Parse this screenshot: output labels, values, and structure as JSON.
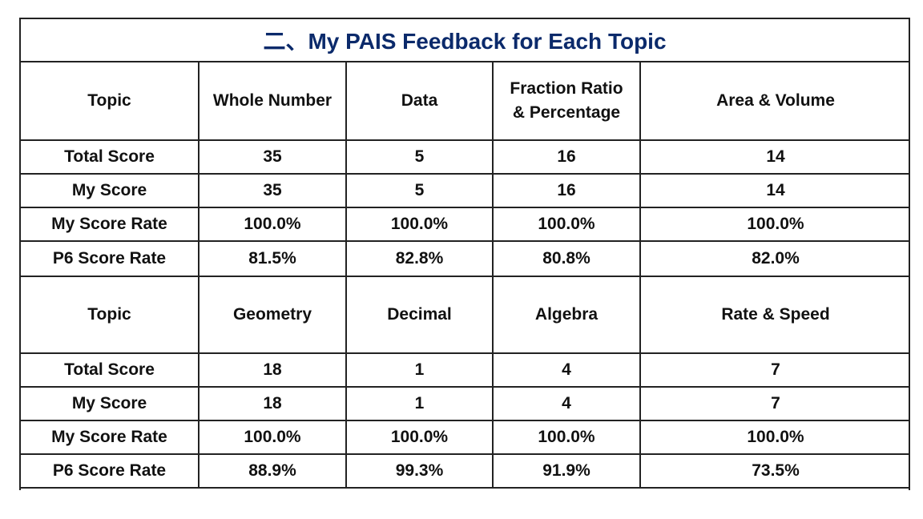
{
  "title": "二、My PAIS Feedback for Each Topic",
  "colors": {
    "navy": "#0b2a6b",
    "red": "#ff1a1a",
    "blue": "#2456cc"
  },
  "section1": {
    "topic_label": "Topic",
    "topics": [
      "Whole Number",
      "Data",
      "Fraction Ratio\n& Percentage",
      "Area & Volume"
    ],
    "rows": {
      "total_score": {
        "label": "Total Score",
        "values": [
          "35",
          "5",
          "16",
          "14"
        ]
      },
      "my_score": {
        "label": "My Score",
        "values": [
          "35",
          "5",
          "16",
          "14"
        ]
      },
      "my_score_rate": {
        "label": "My Score Rate",
        "values": [
          "100.0%",
          "100.0%",
          "100.0%",
          "100.0%"
        ]
      },
      "p6_score_rate": {
        "label": "P6 Score Rate",
        "values": [
          "81.5%",
          "82.8%",
          "80.8%",
          "82.0%"
        ]
      }
    }
  },
  "section2": {
    "topic_label": "Topic",
    "topics": [
      "Geometry",
      "Decimal",
      "Algebra",
      "Rate & Speed"
    ],
    "rows": {
      "total_score": {
        "label": "Total Score",
        "values": [
          "18",
          "1",
          "4",
          "7"
        ]
      },
      "my_score": {
        "label": "My Score",
        "values": [
          "18",
          "1",
          "4",
          "7"
        ]
      },
      "my_score_rate": {
        "label": "My Score Rate",
        "values": [
          "100.0%",
          "100.0%",
          "100.0%",
          "100.0%"
        ]
      },
      "p6_score_rate": {
        "label": "P6 Score Rate",
        "values": [
          "88.9%",
          "99.3%",
          "91.9%",
          "73.5%"
        ]
      }
    }
  }
}
